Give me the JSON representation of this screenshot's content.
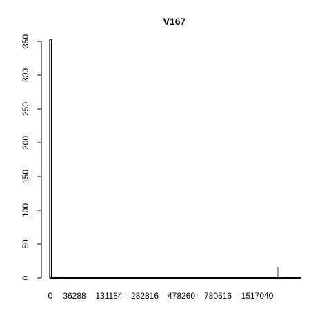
{
  "chart_data": {
    "type": "bar",
    "title": "V167",
    "xlabel": "",
    "ylabel": "",
    "ylim": [
      0,
      350
    ],
    "y_ticks": [
      0,
      50,
      100,
      150,
      200,
      250,
      300,
      350
    ],
    "x_tick_labels": [
      "0",
      "36288",
      "131184",
      "282816",
      "478260",
      "780516",
      "1517040"
    ],
    "values": [
      353,
      0,
      0,
      0,
      0,
      0,
      0,
      1,
      0,
      0,
      0,
      0,
      0,
      0,
      0,
      0,
      0,
      0,
      0,
      0,
      0,
      0,
      0,
      0,
      0,
      0,
      0,
      0,
      0,
      0,
      0,
      0,
      0,
      0,
      0,
      0,
      0,
      0,
      0,
      0,
      0,
      0,
      0,
      0,
      0,
      0,
      0,
      0,
      0,
      0,
      0,
      0,
      0,
      0,
      0,
      0,
      0,
      0,
      0,
      0,
      0,
      0,
      0,
      0,
      0,
      0,
      0,
      0,
      0,
      0,
      0,
      0,
      0,
      0,
      0,
      0,
      0,
      0,
      0,
      0,
      0,
      0,
      0,
      0,
      0,
      0,
      0,
      0,
      0,
      0,
      0,
      0,
      0,
      0,
      0,
      0,
      0,
      0,
      0,
      0,
      0,
      0,
      0,
      0,
      0,
      0,
      0,
      0,
      0,
      0,
      0,
      0,
      0,
      0,
      0,
      0,
      0,
      0,
      0,
      0,
      0,
      0,
      0,
      0,
      0,
      0,
      0,
      0,
      0,
      0,
      0,
      0,
      0,
      0,
      0,
      15,
      0,
      0,
      0,
      0,
      0,
      0,
      0,
      0,
      0,
      0,
      0,
      0,
      0
    ],
    "grid": false,
    "legend": "none"
  }
}
